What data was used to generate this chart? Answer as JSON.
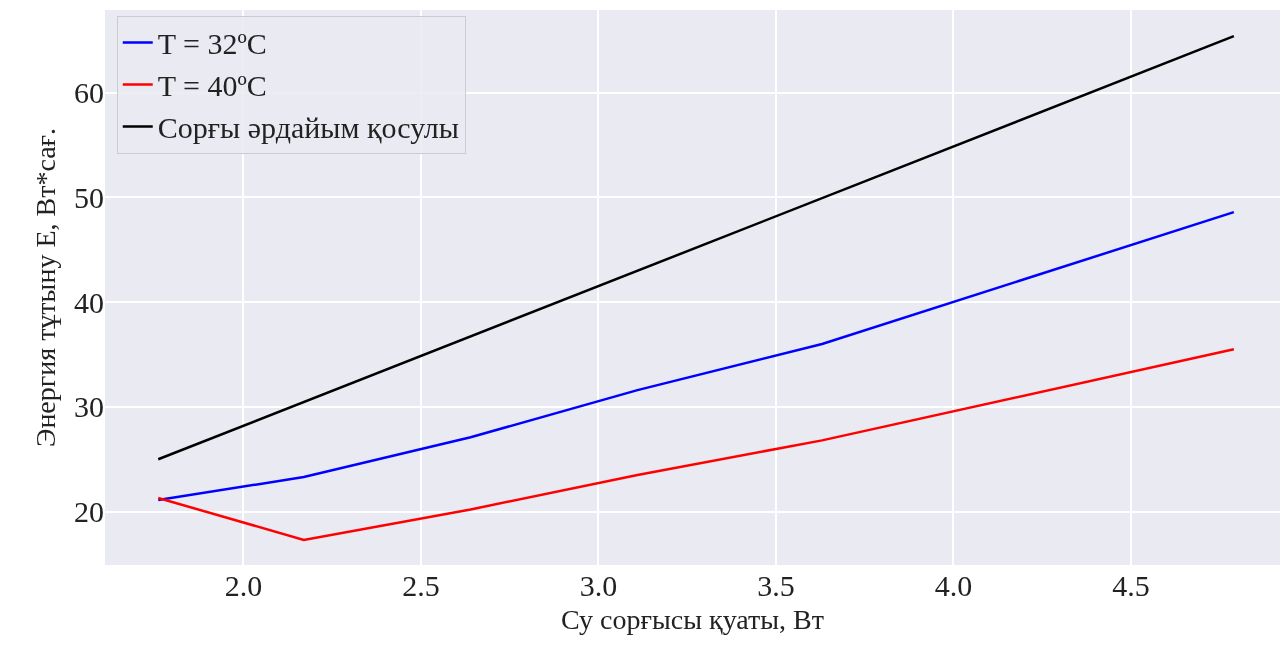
{
  "chart_data": {
    "type": "line",
    "xlabel": "Су сорғысы қуаты, Вт",
    "ylabel": "Энергия тұтыну E, Вт*сағ.",
    "series": [
      {
        "name": "T = 32ºC",
        "color": "#0000ff",
        "x": [
          1.76,
          2.17,
          2.64,
          3.11,
          3.63,
          4.79
        ],
        "values": [
          21.1,
          23.3,
          27.1,
          31.6,
          36.0,
          48.6
        ]
      },
      {
        "name": "T = 40ºC",
        "color": "#ff0000",
        "x": [
          1.76,
          2.17,
          2.64,
          3.11,
          3.63,
          4.79
        ],
        "values": [
          21.3,
          17.3,
          20.2,
          23.5,
          26.8,
          35.5
        ]
      },
      {
        "name": "Сорғы әрдайым қосулы",
        "color": "#000000",
        "x": [
          1.76,
          4.79
        ],
        "values": [
          25.0,
          65.4
        ]
      }
    ],
    "xlim": [
      1.61,
      4.92
    ],
    "xticks": [
      {
        "value": 2,
        "label": "2.0"
      },
      {
        "value": 2.5,
        "label": "2.5"
      },
      {
        "value": 3,
        "label": "3.0"
      },
      {
        "value": 3.5,
        "label": "3.5"
      },
      {
        "value": 4,
        "label": "4.0"
      },
      {
        "value": 4.5,
        "label": "4.5"
      }
    ],
    "ylim": [
      14.9,
      67.9
    ],
    "yticks": [
      20,
      30,
      40,
      50,
      60
    ],
    "grid": true,
    "legend": "top left",
    "line_style": "solid",
    "marker": "none"
  }
}
